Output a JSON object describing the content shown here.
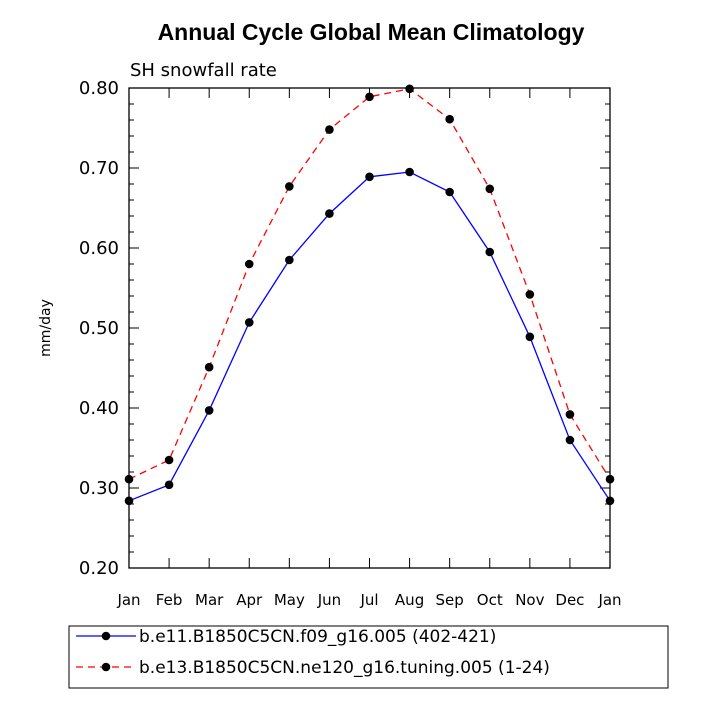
{
  "chart_data": {
    "type": "line",
    "title": "Annual Cycle Global Mean Climatology",
    "subtitle": "SH snowfall rate",
    "xlabel": "",
    "ylabel": "mm/day",
    "categories": [
      "Jan",
      "Feb",
      "Mar",
      "Apr",
      "May",
      "Jun",
      "Jul",
      "Aug",
      "Sep",
      "Oct",
      "Nov",
      "Dec",
      "Jan"
    ],
    "ylim": [
      0.2,
      0.8
    ],
    "yticks": [
      "0.20",
      "0.30",
      "0.40",
      "0.50",
      "0.60",
      "0.70",
      "0.80"
    ],
    "series": [
      {
        "name": "b.e11.B1850C5CN.f09_g16.005 (402-421)",
        "color": "#0000ff",
        "dash": "solid",
        "values": [
          0.284,
          0.304,
          0.397,
          0.507,
          0.585,
          0.643,
          0.689,
          0.695,
          0.67,
          0.595,
          0.489,
          0.36,
          0.284
        ]
      },
      {
        "name": "b.e13.B1850C5CN.ne120_g16.tuning.005 (1-24)",
        "color": "#ff0000",
        "dash": "dashed",
        "values": [
          0.311,
          0.335,
          0.451,
          0.58,
          0.677,
          0.748,
          0.789,
          0.799,
          0.761,
          0.674,
          0.542,
          0.392,
          0.311
        ]
      }
    ],
    "legend_position": "bottom"
  }
}
